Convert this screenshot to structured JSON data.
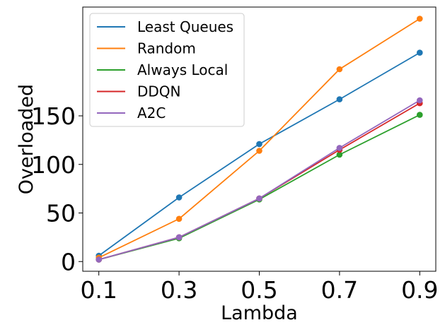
{
  "chart_data": {
    "type": "line",
    "xlabel": "Lambda",
    "ylabel": "Overloaded",
    "x": [
      0.1,
      0.3,
      0.5,
      0.7,
      0.9
    ],
    "xticks": [
      "0.1",
      "0.3",
      "0.5",
      "0.7",
      "0.9"
    ],
    "yticks": [
      "0",
      "50",
      "100",
      "150"
    ],
    "ytick_values": [
      0,
      50,
      100,
      150
    ],
    "xlim": [
      0.06,
      0.94
    ],
    "ylim": [
      -10,
      262
    ],
    "grid": false,
    "legend_position": "top-left",
    "series": [
      {
        "name": "Least Queues",
        "color": "#1f77b4",
        "values": [
          6,
          66,
          121,
          167,
          215
        ]
      },
      {
        "name": "Random",
        "color": "#ff7f0e",
        "values": [
          4,
          44,
          114,
          198,
          250
        ]
      },
      {
        "name": "Always Local",
        "color": "#2ca02c",
        "values": [
          2,
          24,
          64,
          110,
          151
        ]
      },
      {
        "name": "DDQN",
        "color": "#d62728",
        "values": [
          2,
          25,
          65,
          115,
          163
        ]
      },
      {
        "name": "A2C",
        "color": "#9467bd",
        "values": [
          2,
          25,
          65,
          117,
          166
        ]
      }
    ]
  }
}
